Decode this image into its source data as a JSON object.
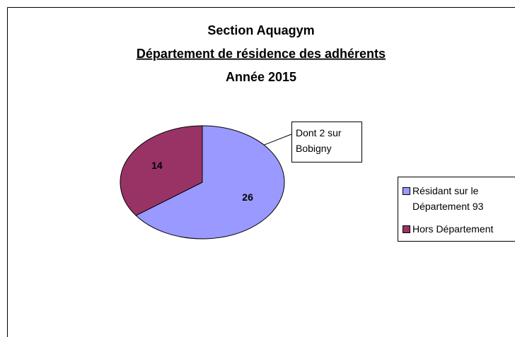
{
  "chart_data": {
    "type": "pie",
    "title_lines": [
      "Section Aquagym",
      "Département de résidence des adhérents",
      "Année 2015"
    ],
    "categories": [
      "Résidant sur le Département 93",
      "Hors Département"
    ],
    "values": [
      26,
      14
    ],
    "colors": [
      "#9999ff",
      "#993366"
    ],
    "annotation": "Dont 2 sur Bobigny",
    "legend": "right"
  }
}
